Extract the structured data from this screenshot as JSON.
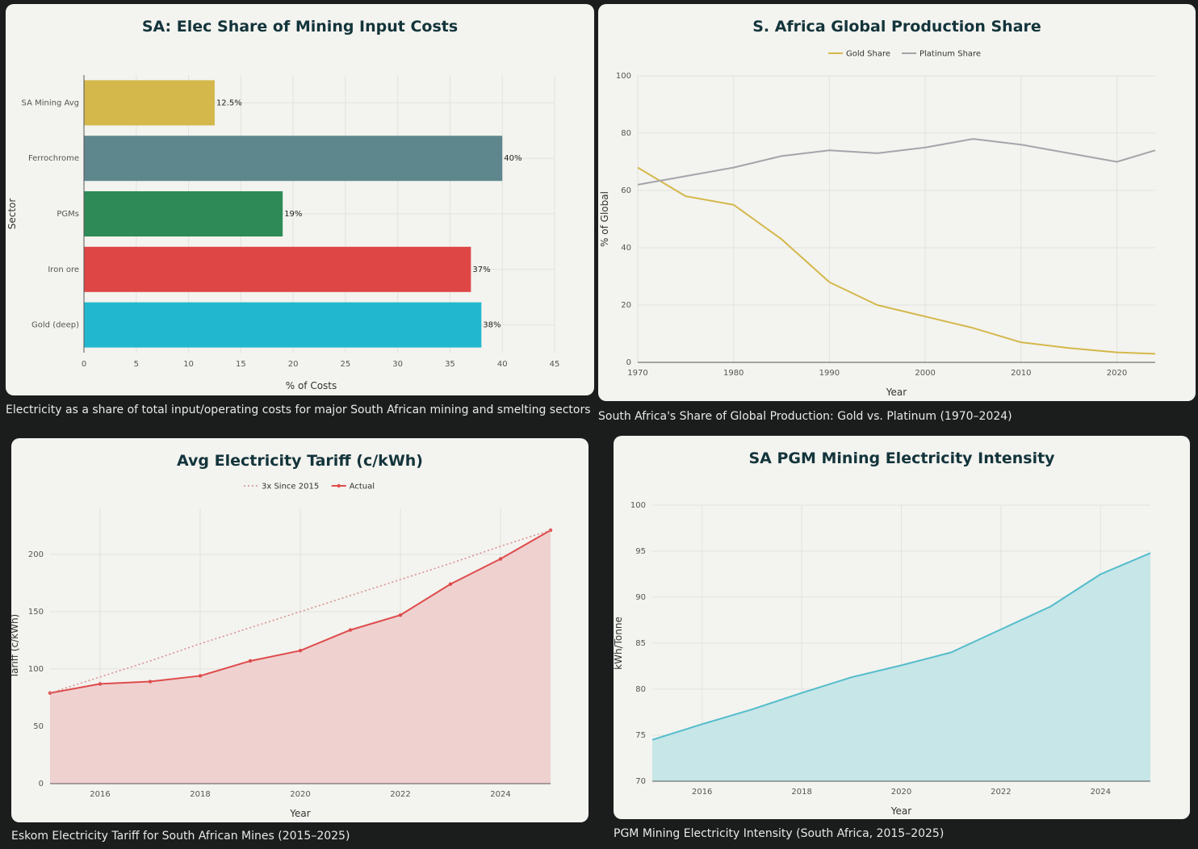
{
  "charts": [
    {
      "caption": "Electricity as a share of total input/operating costs for major South African mining and smelting sectors",
      "chart_data": {
        "type": "bar",
        "orientation": "horizontal",
        "title": "SA: Elec Share of Mining Input Costs",
        "xlabel": "% of Costs",
        "ylabel": "Sector",
        "xlim": [
          0,
          45
        ],
        "xticks": [
          0,
          5,
          10,
          15,
          20,
          25,
          30,
          35,
          40,
          45
        ],
        "categories": [
          "SA Mining Avg",
          "Ferrochrome",
          "PGMs",
          "Iron ore",
          "Gold (deep)"
        ],
        "values": [
          12.5,
          40,
          19,
          37,
          38
        ],
        "data_labels": [
          "12.5%",
          "40%",
          "19%",
          "37%",
          "38%"
        ],
        "colors": [
          "#d4b84b",
          "#5e878d",
          "#2e8b57",
          "#de4646",
          "#21b8cf"
        ],
        "grid": true
      }
    },
    {
      "caption": "South Africa's Share of Global Production: Gold vs. Platinum (1970–2024)",
      "chart_data": {
        "type": "line",
        "title": "S. Africa Global Production Share",
        "xlabel": "Year",
        "ylabel": "% of Global",
        "xlim": [
          1970,
          2024
        ],
        "ylim": [
          0,
          100
        ],
        "xticks": [
          1970,
          1980,
          1990,
          2000,
          2010,
          2020
        ],
        "yticks": [
          0,
          20,
          40,
          60,
          80,
          100
        ],
        "x": [
          1970,
          1975,
          1980,
          1985,
          1990,
          1995,
          2000,
          2005,
          2010,
          2015,
          2020,
          2024
        ],
        "series": [
          {
            "name": "Gold Share",
            "color": "#d4b84b",
            "values": [
              68,
              58,
              55,
              43,
              28,
              20,
              16,
              12,
              7,
              5,
              3.5,
              3
            ]
          },
          {
            "name": "Platinum Share",
            "color": "#a4a5aa",
            "values": [
              62,
              65,
              68,
              72,
              74,
              73,
              75,
              78,
              76,
              73,
              70,
              74
            ]
          }
        ],
        "legend": "top-center",
        "grid": true
      }
    },
    {
      "caption": "Eskom Electricity Tariff for South African Mines (2015–2025)",
      "chart_data": {
        "type": "area",
        "title": "Avg Electricity Tariff (c/kWh)",
        "xlabel": "Year",
        "ylabel": "Tariff (c/kWh)",
        "xlim": [
          2015,
          2025
        ],
        "ylim": [
          0,
          240
        ],
        "xticks": [
          2016,
          2018,
          2020,
          2022,
          2024
        ],
        "yticks": [
          0,
          50,
          100,
          150,
          200
        ],
        "x": [
          2015,
          2016,
          2017,
          2018,
          2019,
          2020,
          2021,
          2022,
          2023,
          2024,
          2025
        ],
        "series": [
          {
            "name": "Actual",
            "color": "#de4c4c",
            "fill": "#efd1d0",
            "values": [
              79,
              87,
              89,
              94,
              107,
              116,
              134,
              147,
              174,
              196,
              221
            ]
          },
          {
            "name": "3x Since 2015",
            "color": "#d88d8d",
            "dashed": true,
            "values": [
              79,
              93,
              107,
              122,
              136,
              150,
              164,
              178,
              192,
              207,
              221
            ]
          }
        ],
        "legend": "top-center",
        "grid": true
      }
    },
    {
      "caption": "PGM Mining Electricity Intensity (South Africa, 2015–2025)",
      "chart_data": {
        "type": "area",
        "title": "SA PGM Mining Electricity Intensity",
        "xlabel": "Year",
        "ylabel": "kWh/Tonne",
        "xlim": [
          2015,
          2025
        ],
        "ylim": [
          70,
          100
        ],
        "xticks": [
          2016,
          2018,
          2020,
          2022,
          2024
        ],
        "yticks": [
          70,
          75,
          80,
          85,
          90,
          95,
          100
        ],
        "x": [
          2015,
          2016,
          2017,
          2018,
          2019,
          2020,
          2021,
          2022,
          2023,
          2024,
          2025
        ],
        "series": [
          {
            "name": "",
            "color": "#54bccb",
            "fill": "#c6e6e8",
            "values": [
              74.5,
              76.2,
              77.8,
              79.6,
              81.3,
              82.6,
              84.0,
              86.5,
              89.0,
              92.5,
              94.8
            ]
          }
        ],
        "grid": true
      }
    }
  ]
}
